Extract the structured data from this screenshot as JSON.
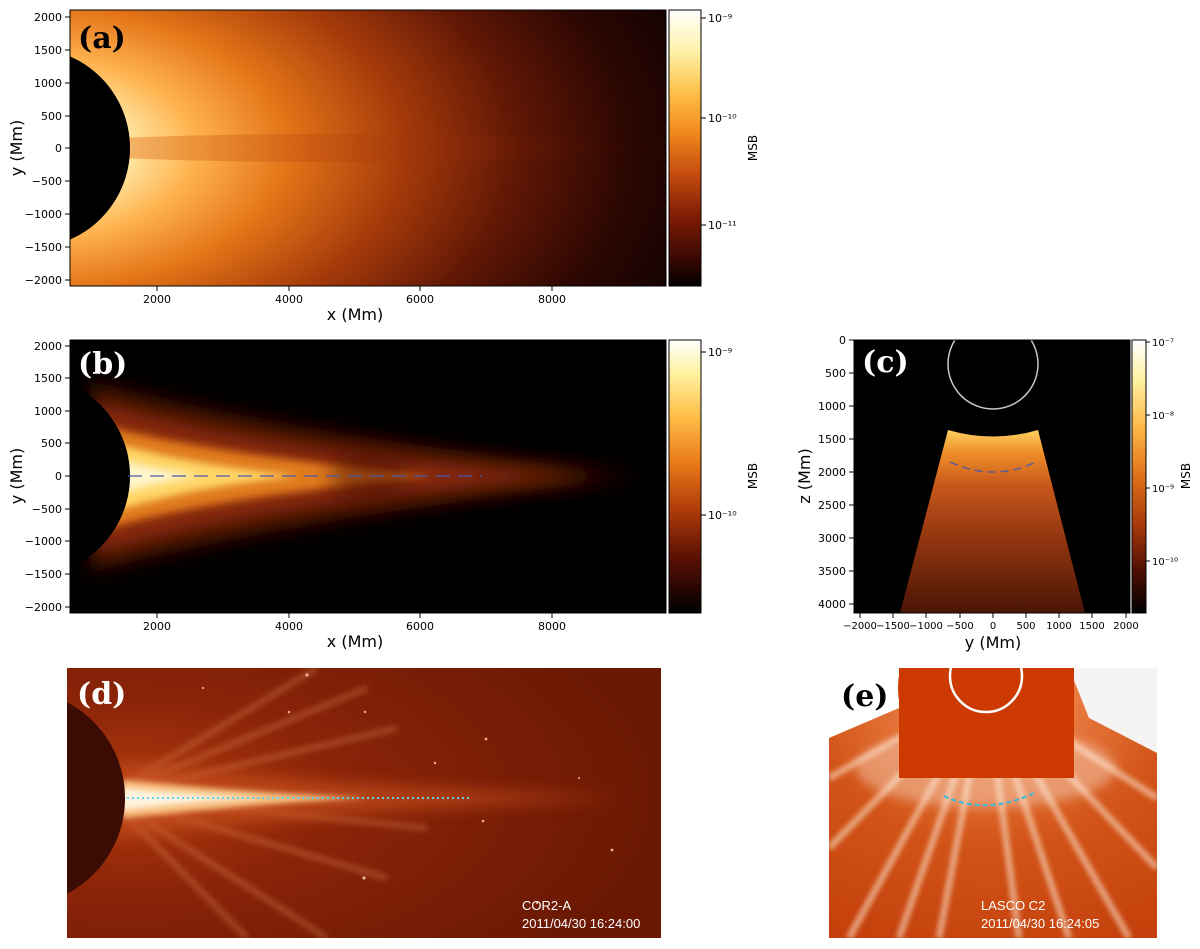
{
  "panel_a": {
    "letter": "(a)",
    "xlabel": "x (Mm)",
    "ylabel": "y (Mm)",
    "xticks": [
      "2000",
      "4000",
      "6000",
      "8000"
    ],
    "yticks": [
      "2000",
      "1500",
      "1000",
      "500",
      "0",
      "−500",
      "−1000",
      "−1500",
      "−2000"
    ],
    "colorbar_label": "MSB",
    "colorbar_ticks": [
      "10⁻⁹",
      "10⁻¹⁰",
      "10⁻¹¹"
    ]
  },
  "panel_b": {
    "letter": "(b)",
    "xlabel": "x (Mm)",
    "ylabel": "y (Mm)",
    "xticks": [
      "2000",
      "4000",
      "6000",
      "8000"
    ],
    "yticks": [
      "2000",
      "1500",
      "1000",
      "500",
      "0",
      "−500",
      "−1000",
      "−1500",
      "−2000"
    ],
    "colorbar_label": "MSB",
    "colorbar_ticks": [
      "10⁻⁹",
      "10⁻¹⁰"
    ]
  },
  "panel_c": {
    "letter": "(c)",
    "xlabel": "y (Mm)",
    "ylabel": "z (Mm)",
    "xticks": [
      "−2000",
      "−1500",
      "−1000",
      "−500",
      "0",
      "500",
      "1000",
      "1500",
      "2000"
    ],
    "yticks": [
      "0",
      "500",
      "1000",
      "1500",
      "2000",
      "2500",
      "3000",
      "3500",
      "4000"
    ],
    "colorbar_label": "MSB",
    "colorbar_ticks": [
      "10⁻⁷",
      "10⁻⁸",
      "10⁻⁹",
      "10⁻¹⁰"
    ]
  },
  "panel_d": {
    "letter": "(d)",
    "instrument": "COR2-A",
    "timestamp": "2011/04/30 16:24:00"
  },
  "panel_e": {
    "letter": "(e)",
    "instrument": "LASCO C2",
    "timestamp": "2011/04/30 16:24:05"
  },
  "colors": {
    "dashed_line_model": "#4a5aa8",
    "dotted_line_obs": "#5fd3e8"
  }
}
